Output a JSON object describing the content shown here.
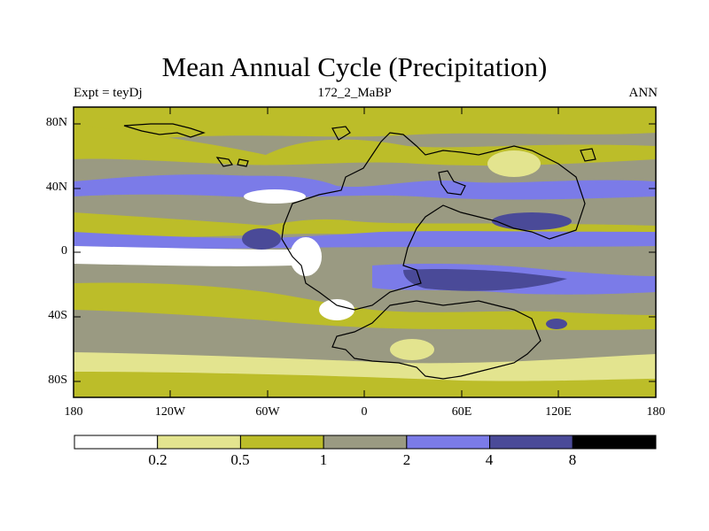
{
  "title": "Mean Annual Cycle (Precipitation)",
  "subtitle_left": "Expt = teyDj",
  "subtitle_center": "172_2_MaBP",
  "subtitle_right": "ANN",
  "map": {
    "lat_labels": [
      "80N",
      "40N",
      "0",
      "40S",
      "80S"
    ],
    "lon_labels": [
      "180",
      "120W",
      "60W",
      "0",
      "60E",
      "120E",
      "180"
    ]
  },
  "colorbar": {
    "labels": [
      "0.2",
      "0.5",
      "1",
      "2",
      "4",
      "8"
    ],
    "colors": [
      "#ffffff",
      "#e3e48f",
      "#bcbd29",
      "#9a9a82",
      "#7b7be8",
      "#4a4a98",
      "#000000"
    ]
  }
}
